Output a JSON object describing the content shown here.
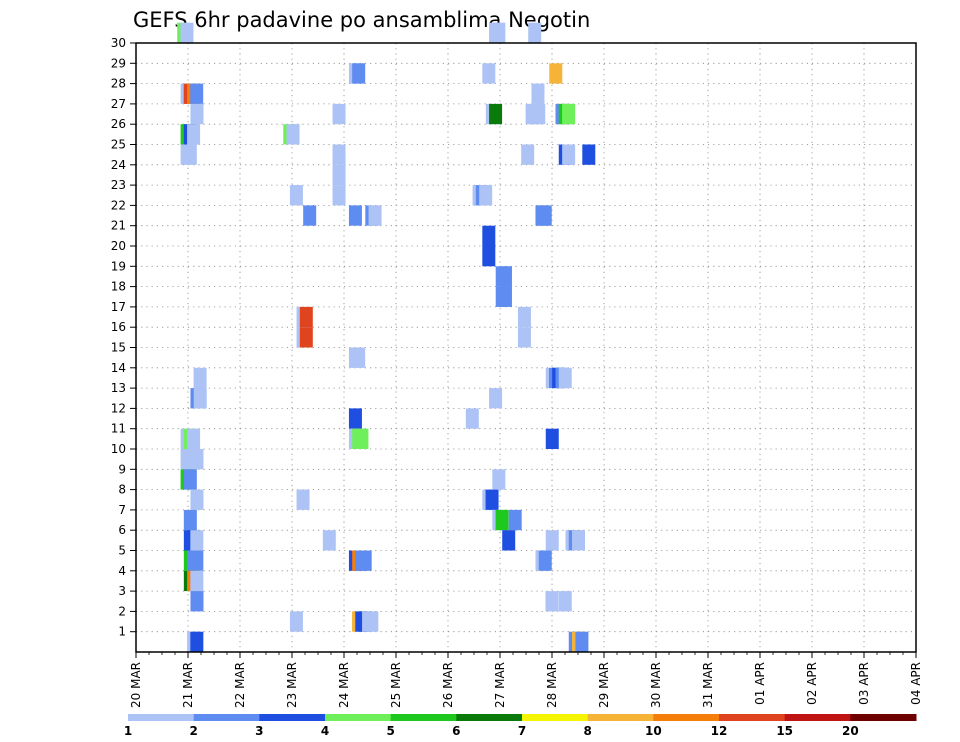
{
  "chart_data": {
    "type": "heatmap",
    "title": "GEFS 6hr padavine po ansamblima Negotin",
    "xlabel": "",
    "ylabel": "",
    "x_ticks": [
      "20 MAR",
      "21 MAR",
      "22 MAR",
      "23 MAR",
      "24 MAR",
      "25 MAR",
      "26 MAR",
      "27 MAR",
      "28 MAR",
      "29 MAR",
      "30 MAR",
      "31 MAR",
      "01 APR",
      "02 APR",
      "03 APR",
      "04 APR"
    ],
    "y_ticks": [
      1,
      2,
      3,
      4,
      5,
      6,
      7,
      8,
      9,
      10,
      11,
      12,
      13,
      14,
      15,
      16,
      17,
      18,
      19,
      20,
      21,
      22,
      23,
      24,
      25,
      26,
      27,
      28,
      29,
      30
    ],
    "x_range": [
      "20 MAR 00Z",
      "04 APR 00Z"
    ],
    "y_range": [
      0,
      30
    ],
    "grid": true,
    "legend_placement": "bottom",
    "legend": {
      "labels": [
        "1",
        "2",
        "3",
        "4",
        "5",
        "6",
        "7",
        "8",
        "10",
        "12",
        "15",
        "20"
      ],
      "colors": [
        "#aec3f5",
        "#5f8cf0",
        "#1f4fe0",
        "#6ff05a",
        "#1ec81e",
        "#0a7a0a",
        "#f5f500",
        "#f5b437",
        "#f57d0a",
        "#e0441e",
        "#c01414",
        "#6e0000"
      ]
    },
    "cells": [
      {
        "t": 3.17,
        "m": 30,
        "c": 4
      },
      {
        "t": 3.42,
        "m": 30,
        "c": 1
      },
      {
        "t": 27.16,
        "m": 30,
        "c": 1
      },
      {
        "t": 27.41,
        "m": 30,
        "c": 1
      },
      {
        "t": 30.17,
        "m": 30,
        "c": 1
      },
      {
        "t": 31.79,
        "m": 28,
        "c": 8
      },
      {
        "t": 16.38,
        "m": 28,
        "c": 1
      },
      {
        "t": 16.63,
        "m": 28,
        "c": 2
      },
      {
        "t": 26.64,
        "m": 28,
        "c": 1
      },
      {
        "t": 3.43,
        "m": 27,
        "c": 1
      },
      {
        "t": 3.67,
        "m": 27,
        "c": 10
      },
      {
        "t": 3.93,
        "m": 27,
        "c": 9
      },
      {
        "t": 4.17,
        "m": 27,
        "c": 2
      },
      {
        "t": 30.42,
        "m": 27,
        "c": 1
      },
      {
        "t": 4.19,
        "m": 26,
        "c": 1
      },
      {
        "t": 15.12,
        "m": 26,
        "c": 1
      },
      {
        "t": 26.91,
        "m": 26,
        "c": 1
      },
      {
        "t": 27.16,
        "m": 26,
        "c": 6
      },
      {
        "t": 29.97,
        "m": 26,
        "c": 1
      },
      {
        "t": 30.22,
        "m": 26,
        "c": 1
      },
      {
        "t": 30.48,
        "m": 26,
        "c": 1
      },
      {
        "t": 32.27,
        "m": 26,
        "c": 2
      },
      {
        "t": 32.52,
        "m": 26,
        "c": 5
      },
      {
        "t": 32.78,
        "m": 26,
        "c": 4
      },
      {
        "t": 3.43,
        "m": 25,
        "c": 5
      },
      {
        "t": 3.68,
        "m": 25,
        "c": 3
      },
      {
        "t": 3.93,
        "m": 25,
        "c": 1
      },
      {
        "t": 11.33,
        "m": 25,
        "c": 4
      },
      {
        "t": 11.58,
        "m": 25,
        "c": 1
      },
      {
        "t": 3.43,
        "m": 24,
        "c": 1
      },
      {
        "t": 3.68,
        "m": 24,
        "c": 1
      },
      {
        "t": 15.12,
        "m": 24,
        "c": 1
      },
      {
        "t": 29.63,
        "m": 24,
        "c": 1
      },
      {
        "t": 32.52,
        "m": 24,
        "c": 3
      },
      {
        "t": 32.78,
        "m": 24,
        "c": 1
      },
      {
        "t": 34.33,
        "m": 24,
        "c": 3
      },
      {
        "t": 15.12,
        "m": 23,
        "c": 1
      },
      {
        "t": 11.84,
        "m": 22,
        "c": 1
      },
      {
        "t": 15.12,
        "m": 22,
        "c": 1
      },
      {
        "t": 25.89,
        "m": 22,
        "c": 1
      },
      {
        "t": 26.14,
        "m": 22,
        "c": 2
      },
      {
        "t": 26.4,
        "m": 22,
        "c": 1
      },
      {
        "t": 12.86,
        "m": 21,
        "c": 2
      },
      {
        "t": 16.38,
        "m": 21,
        "c": 2
      },
      {
        "t": 17.64,
        "m": 21,
        "c": 2
      },
      {
        "t": 17.89,
        "m": 21,
        "c": 1
      },
      {
        "t": 30.73,
        "m": 21,
        "c": 2
      },
      {
        "t": 30.98,
        "m": 21,
        "c": 2
      },
      {
        "t": 26.64,
        "m": 20,
        "c": 3
      },
      {
        "t": 26.64,
        "m": 19,
        "c": 3
      },
      {
        "t": 27.67,
        "m": 18,
        "c": 2
      },
      {
        "t": 27.92,
        "m": 18,
        "c": 2
      },
      {
        "t": 27.67,
        "m": 17,
        "c": 2
      },
      {
        "t": 27.92,
        "m": 17,
        "c": 2
      },
      {
        "t": 12.35,
        "m": 16,
        "c": 1
      },
      {
        "t": 12.6,
        "m": 16,
        "c": 10
      },
      {
        "t": 29.38,
        "m": 16,
        "c": 1
      },
      {
        "t": 12.35,
        "m": 15,
        "c": 1
      },
      {
        "t": 12.6,
        "m": 15,
        "c": 10
      },
      {
        "t": 29.38,
        "m": 15,
        "c": 1
      },
      {
        "t": 16.38,
        "m": 14,
        "c": 1
      },
      {
        "t": 16.63,
        "m": 14,
        "c": 1
      },
      {
        "t": 4.43,
        "m": 13,
        "c": 1
      },
      {
        "t": 31.52,
        "m": 13,
        "c": 1
      },
      {
        "t": 31.77,
        "m": 13,
        "c": 2
      },
      {
        "t": 32.01,
        "m": 13,
        "c": 3
      },
      {
        "t": 32.27,
        "m": 13,
        "c": 2
      },
      {
        "t": 32.52,
        "m": 13,
        "c": 1
      },
      {
        "t": 4.19,
        "m": 12,
        "c": 2
      },
      {
        "t": 4.44,
        "m": 12,
        "c": 1
      },
      {
        "t": 27.16,
        "m": 12,
        "c": 1
      },
      {
        "t": 16.38,
        "m": 11,
        "c": 3
      },
      {
        "t": 25.37,
        "m": 11,
        "c": 1
      },
      {
        "t": 3.43,
        "m": 10,
        "c": 1
      },
      {
        "t": 3.68,
        "m": 10,
        "c": 4
      },
      {
        "t": 3.93,
        "m": 10,
        "c": 1
      },
      {
        "t": 16.38,
        "m": 10,
        "c": 1
      },
      {
        "t": 16.63,
        "m": 10,
        "c": 4
      },
      {
        "t": 16.88,
        "m": 10,
        "c": 4
      },
      {
        "t": 31.52,
        "m": 10,
        "c": 3
      },
      {
        "t": 3.43,
        "m": 9,
        "c": 1
      },
      {
        "t": 3.68,
        "m": 9,
        "c": 1
      },
      {
        "t": 3.93,
        "m": 9,
        "c": 1
      },
      {
        "t": 4.19,
        "m": 9,
        "c": 1
      },
      {
        "t": 3.43,
        "m": 8,
        "c": 5
      },
      {
        "t": 3.68,
        "m": 8,
        "c": 2
      },
      {
        "t": 27.41,
        "m": 8,
        "c": 1
      },
      {
        "t": 4.19,
        "m": 7,
        "c": 1
      },
      {
        "t": 12.35,
        "m": 7,
        "c": 1
      },
      {
        "t": 26.64,
        "m": 7,
        "c": 1
      },
      {
        "t": 26.89,
        "m": 7,
        "c": 3
      },
      {
        "t": 3.68,
        "m": 6,
        "c": 2
      },
      {
        "t": 27.41,
        "m": 6,
        "c": 1
      },
      {
        "t": 27.66,
        "m": 6,
        "c": 5
      },
      {
        "t": 28.67,
        "m": 6,
        "c": 2
      },
      {
        "t": 3.68,
        "m": 5,
        "c": 3
      },
      {
        "t": 3.93,
        "m": 5,
        "c": 3
      },
      {
        "t": 4.18,
        "m": 5,
        "c": 1
      },
      {
        "t": 14.37,
        "m": 5,
        "c": 1
      },
      {
        "t": 28.17,
        "m": 5,
        "c": 3
      },
      {
        "t": 31.52,
        "m": 5,
        "c": 1
      },
      {
        "t": 33.04,
        "m": 5,
        "c": 1
      },
      {
        "t": 33.29,
        "m": 5,
        "c": 2
      },
      {
        "t": 33.54,
        "m": 5,
        "c": 1
      },
      {
        "t": 3.68,
        "m": 4,
        "c": 5
      },
      {
        "t": 3.93,
        "m": 4,
        "c": 2
      },
      {
        "t": 4.18,
        "m": 4,
        "c": 2
      },
      {
        "t": 16.38,
        "m": 4,
        "c": 3
      },
      {
        "t": 16.63,
        "m": 4,
        "c": 9
      },
      {
        "t": 16.88,
        "m": 4,
        "c": 2
      },
      {
        "t": 17.13,
        "m": 4,
        "c": 2
      },
      {
        "t": 30.73,
        "m": 4,
        "c": 1
      },
      {
        "t": 30.98,
        "m": 4,
        "c": 2
      },
      {
        "t": 3.68,
        "m": 3,
        "c": 6
      },
      {
        "t": 3.93,
        "m": 3,
        "c": 9
      },
      {
        "t": 4.18,
        "m": 3,
        "c": 1
      },
      {
        "t": 4.19,
        "m": 2,
        "c": 2
      },
      {
        "t": 31.5,
        "m": 2,
        "c": 1
      },
      {
        "t": 32.52,
        "m": 2,
        "c": 1
      },
      {
        "t": 11.84,
        "m": 1,
        "c": 1
      },
      {
        "t": 16.62,
        "m": 1,
        "c": 8
      },
      {
        "t": 16.87,
        "m": 1,
        "c": 3
      },
      {
        "t": 17.13,
        "m": 1,
        "c": 3
      },
      {
        "t": 17.39,
        "m": 1,
        "c": 1
      },
      {
        "t": 17.64,
        "m": 1,
        "c": 1
      },
      {
        "t": 3.93,
        "m": 0,
        "c": 1
      },
      {
        "t": 4.18,
        "m": 0,
        "c": 3
      },
      {
        "t": 33.29,
        "m": 0,
        "c": 2
      },
      {
        "t": 33.54,
        "m": 0,
        "c": 8
      },
      {
        "t": 33.8,
        "m": 0,
        "c": 2
      }
    ]
  }
}
